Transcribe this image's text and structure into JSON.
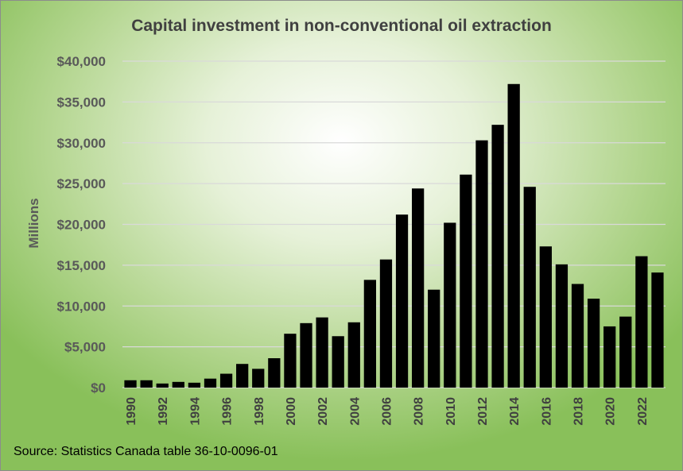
{
  "chart_data": {
    "type": "bar",
    "title": "Capital investment in non-conventional oil extraction",
    "ylabel": "Millions",
    "xlabel": "",
    "ylim": [
      0,
      40000
    ],
    "y_ticks": [
      "$0",
      "$5,000",
      "$10,000",
      "$15,000",
      "$20,000",
      "$25,000",
      "$30,000",
      "$35,000",
      "$40,000"
    ],
    "grid": true,
    "categories": [
      "1990",
      "1991",
      "1992",
      "1993",
      "1994",
      "1995",
      "1996",
      "1997",
      "1998",
      "1999",
      "2000",
      "2001",
      "2002",
      "2003",
      "2004",
      "2005",
      "2006",
      "2007",
      "2008",
      "2009",
      "2010",
      "2011",
      "2012",
      "2013",
      "2014",
      "2015",
      "2016",
      "2017",
      "2018",
      "2019",
      "2020",
      "2021",
      "2022",
      "2023"
    ],
    "x_tick_labels": [
      "1990",
      "",
      "1992",
      "",
      "1994",
      "",
      "1996",
      "",
      "1998",
      "",
      "2000",
      "",
      "2002",
      "",
      "2004",
      "",
      "2006",
      "",
      "2008",
      "",
      "2010",
      "",
      "2012",
      "",
      "2014",
      "",
      "2016",
      "",
      "2018",
      "",
      "2020",
      "",
      "2022",
      ""
    ],
    "values": [
      900,
      900,
      500,
      700,
      600,
      1100,
      1700,
      2900,
      2300,
      3600,
      6600,
      7900,
      8600,
      6300,
      8000,
      13200,
      15700,
      21200,
      24400,
      12000,
      20200,
      26100,
      30300,
      32200,
      37200,
      24600,
      17300,
      15100,
      12700,
      10900,
      7500,
      8700,
      16100,
      14100
    ],
    "bar_color": "#000000",
    "source": "Source: Statistics Canada table 36-10-0096-01"
  }
}
